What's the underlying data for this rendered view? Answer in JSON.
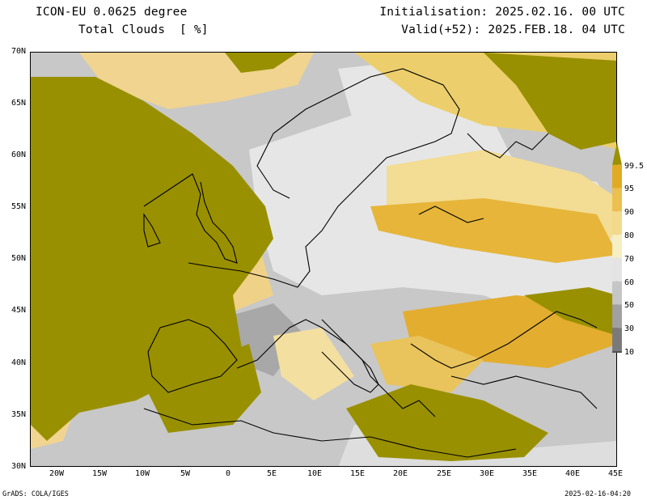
{
  "header": {
    "model": "ICON-EU 0.0625 degree",
    "variable": "Total Clouds  [ %]",
    "init": "Initialisation: 2025.02.16. 00 UTC",
    "valid": "Valid(+52): 2025.FEB.18. 04 UTC"
  },
  "lat_labels": [
    "70N",
    "65N",
    "60N",
    "55N",
    "50N",
    "45N",
    "40N",
    "35N",
    "30N"
  ],
  "lon_labels": [
    "20W",
    "15W",
    "10W",
    "5W",
    "0",
    "5E",
    "10E",
    "15E",
    "20E",
    "25E",
    "30E",
    "35E",
    "40E",
    "45E"
  ],
  "colorbar": {
    "labels": [
      "99.5",
      "95",
      "90",
      "80",
      "70",
      "60",
      "50",
      "30",
      "10"
    ],
    "colors": [
      "#9a9000",
      "#e2aa20",
      "#ebc050",
      "#f3d98c",
      "#f6efc4",
      "#e4e4e4",
      "#c6c6c6",
      "#a0a0a0",
      "#7a7a7a",
      "#505050"
    ]
  },
  "footer": {
    "left": "GrADS: COLA/IGES",
    "right": "2025-02-16-04:20"
  }
}
